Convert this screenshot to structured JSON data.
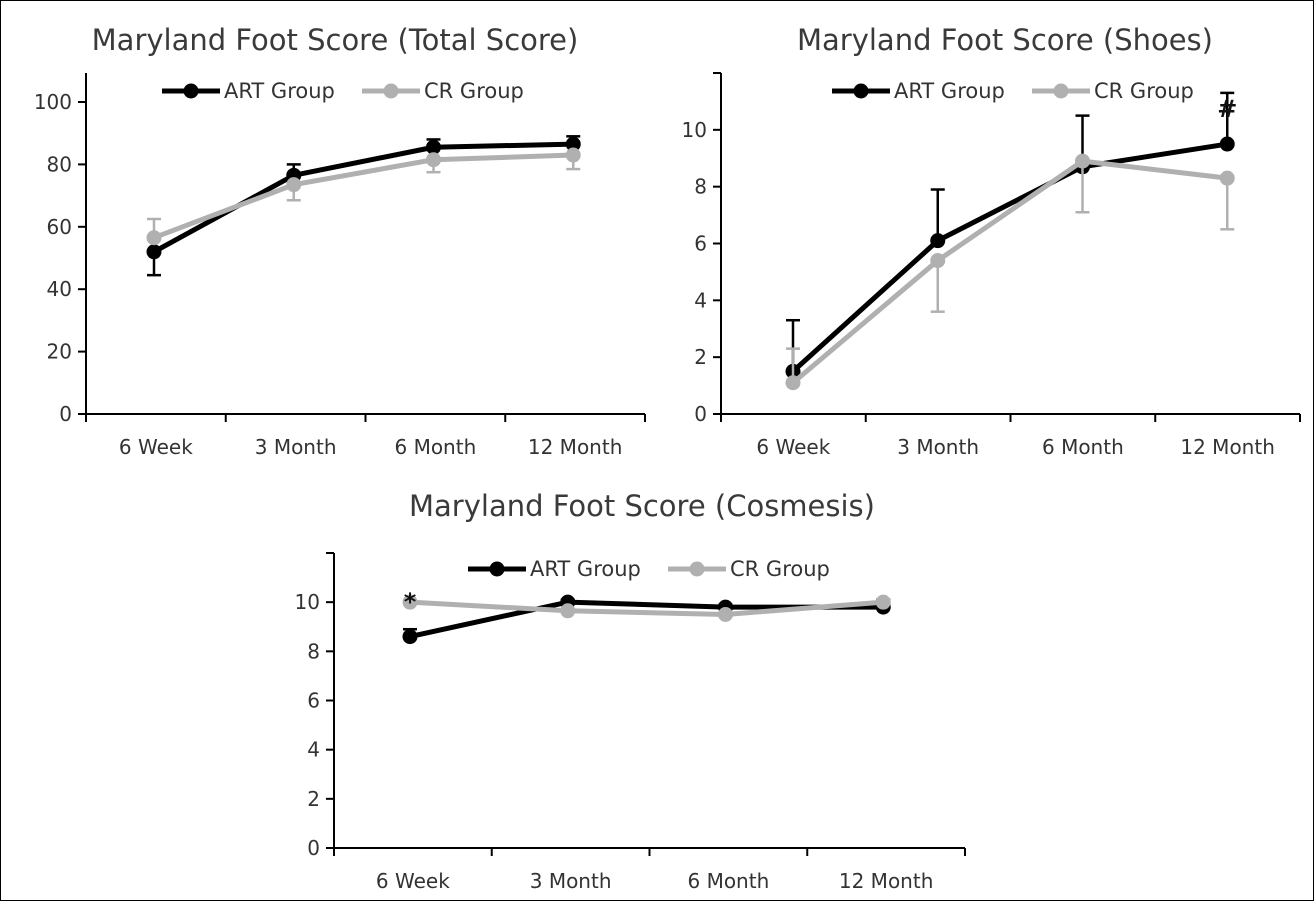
{
  "figure": {
    "background": "#ffffff"
  },
  "chart_data": [
    {
      "type": "line",
      "title": "Maryland Foot Score (Total Score)",
      "categories": [
        "6 Week",
        "3 Month",
        "6 Month",
        "12 Month"
      ],
      "ylim": [
        0,
        100
      ],
      "yticks": [
        0,
        20,
        40,
        60,
        80,
        100
      ],
      "show_tick_labels": true,
      "grid": false,
      "legend": "top",
      "annotations": [],
      "series": [
        {
          "name": "ART Group",
          "color": "#000000",
          "values": [
            52,
            76.5,
            85.5,
            86.5
          ],
          "err": [
            7.5,
            3.5,
            2.5,
            2.5
          ]
        },
        {
          "name": "CR Group",
          "color": "#b0b0b0",
          "values": [
            56.5,
            73.5,
            81.5,
            83
          ],
          "err": [
            6,
            5,
            4,
            4.5
          ]
        }
      ]
    },
    {
      "type": "line",
      "title": "Maryland Foot Score (Shoes)",
      "categories": [
        "6 Week",
        "3 Month",
        "6 Month",
        "12 Month"
      ],
      "ylim": [
        0,
        12
      ],
      "yticks": [
        0,
        2,
        4,
        6,
        8,
        10,
        12
      ],
      "show_tick_labels": true,
      "grid": false,
      "legend": "top",
      "annotations": [
        {
          "text": "#",
          "category": "12 Month"
        }
      ],
      "series": [
        {
          "name": "ART Group",
          "color": "#000000",
          "values": [
            1.5,
            6.1,
            8.7,
            9.5
          ],
          "err": [
            1.8,
            1.8,
            1.8,
            1.8
          ]
        },
        {
          "name": "CR Group",
          "color": "#b0b0b0",
          "values": [
            1.1,
            5.4,
            8.9,
            8.3
          ],
          "err": [
            1.2,
            1.8,
            1.8,
            1.8
          ]
        }
      ]
    },
    {
      "type": "line",
      "title": "Maryland Foot Score (Cosmesis)",
      "categories": [
        "6 Week",
        "3 Month",
        "6 Month",
        "12 Month"
      ],
      "ylim": [
        0,
        12
      ],
      "yticks": [
        0,
        2,
        4,
        6,
        8,
        10,
        12
      ],
      "show_tick_labels": true,
      "grid": false,
      "legend": "top",
      "annotations": [
        {
          "text": "*",
          "category": "6 Week"
        }
      ],
      "series": [
        {
          "name": "ART Group",
          "color": "#000000",
          "values": [
            8.6,
            10,
            9.8,
            9.8
          ],
          "err": [
            0.3,
            0.1,
            0.1,
            0.3
          ]
        },
        {
          "name": "CR Group",
          "color": "#b0b0b0",
          "values": [
            10,
            9.65,
            9.5,
            10
          ],
          "err": [
            0,
            0,
            0,
            0
          ]
        }
      ]
    }
  ]
}
